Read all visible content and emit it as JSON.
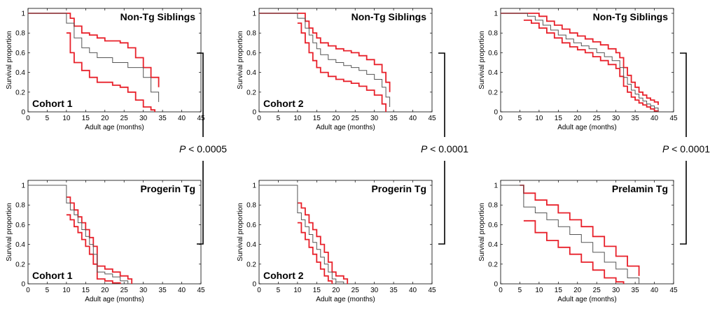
{
  "chart_data": [
    {
      "type": "line",
      "title": "Non-Tg Siblings",
      "annotation": "Cohort 1",
      "xlabel": "Adult age (months)",
      "ylabel": "Survival proportion",
      "xlim": [
        0,
        45
      ],
      "ylim": [
        0,
        1.05
      ],
      "xticks": [
        0,
        5,
        10,
        15,
        20,
        25,
        30,
        35,
        40,
        45
      ],
      "yticks": [
        0,
        0.2,
        0.4,
        0.6,
        0.8,
        1
      ],
      "series": [
        {
          "role": "estimate",
          "color": "#555555",
          "x": [
            0,
            10,
            12,
            14,
            16,
            18,
            20,
            22,
            24,
            26,
            28,
            30,
            32,
            34
          ],
          "y": [
            1,
            0.9,
            0.75,
            0.65,
            0.6,
            0.55,
            0.55,
            0.5,
            0.5,
            0.45,
            0.45,
            0.35,
            0.2,
            0.1
          ]
        },
        {
          "role": "upper-ci",
          "color": "#e8202a",
          "x": [
            0,
            10,
            11,
            12,
            14,
            16,
            18,
            20,
            22,
            24,
            26,
            28,
            30,
            32,
            34
          ],
          "y": [
            1,
            1,
            0.95,
            0.87,
            0.8,
            0.78,
            0.75,
            0.72,
            0.72,
            0.7,
            0.65,
            0.55,
            0.45,
            0.35,
            0.25
          ]
        },
        {
          "role": "lower-ci",
          "color": "#e8202a",
          "x": [
            10,
            11,
            12,
            14,
            16,
            18,
            20,
            22,
            24,
            26,
            28,
            30,
            32,
            33
          ],
          "y": [
            0.8,
            0.6,
            0.5,
            0.42,
            0.35,
            0.3,
            0.3,
            0.27,
            0.25,
            0.2,
            0.12,
            0.05,
            0.02,
            0
          ]
        }
      ]
    },
    {
      "type": "line",
      "title": "Progerin Tg",
      "annotation": "Cohort 1",
      "xlabel": "Adult age (months)",
      "ylabel": "Survival proportion",
      "xlim": [
        0,
        45
      ],
      "ylim": [
        0,
        1.05
      ],
      "xticks": [
        0,
        5,
        10,
        15,
        20,
        25,
        30,
        35,
        40,
        45
      ],
      "yticks": [
        0,
        0.2,
        0.4,
        0.6,
        0.8,
        1
      ],
      "series": [
        {
          "role": "estimate",
          "color": "#555555",
          "x": [
            0,
            10,
            11,
            12,
            13,
            14,
            15,
            16,
            17,
            18,
            20,
            22,
            24,
            26
          ],
          "y": [
            1,
            0.82,
            0.75,
            0.7,
            0.62,
            0.55,
            0.48,
            0.4,
            0.3,
            0.12,
            0.1,
            0.07,
            0.03,
            0
          ]
        },
        {
          "role": "upper-ci",
          "color": "#e8202a",
          "x": [
            10,
            11,
            12,
            13,
            14,
            15,
            16,
            17,
            18,
            20,
            22,
            24,
            26,
            27
          ],
          "y": [
            0.88,
            0.82,
            0.75,
            0.68,
            0.62,
            0.55,
            0.47,
            0.38,
            0.18,
            0.15,
            0.12,
            0.08,
            0.05,
            0
          ]
        },
        {
          "role": "lower-ci",
          "color": "#e8202a",
          "x": [
            10,
            11,
            12,
            13,
            14,
            15,
            16,
            17,
            18,
            20,
            22,
            24
          ],
          "y": [
            0.7,
            0.65,
            0.58,
            0.52,
            0.45,
            0.38,
            0.3,
            0.2,
            0.05,
            0.03,
            0.01,
            0
          ]
        }
      ]
    },
    {
      "type": "line",
      "title": "Non-Tg Siblings",
      "annotation": "Cohort 2",
      "xlabel": "Adult age (months)",
      "ylabel": "Survival proportion",
      "xlim": [
        0,
        45
      ],
      "ylim": [
        0,
        1.05
      ],
      "xticks": [
        0,
        5,
        10,
        15,
        20,
        25,
        30,
        35,
        40,
        45
      ],
      "yticks": [
        0,
        0.2,
        0.4,
        0.6,
        0.8,
        1
      ],
      "series": [
        {
          "role": "estimate",
          "color": "#555555",
          "x": [
            0,
            10,
            12,
            13,
            14,
            15,
            16,
            18,
            20,
            22,
            24,
            26,
            28,
            30,
            32,
            33,
            34
          ],
          "y": [
            1,
            0.95,
            0.85,
            0.78,
            0.7,
            0.64,
            0.58,
            0.53,
            0.5,
            0.47,
            0.45,
            0.42,
            0.38,
            0.33,
            0.25,
            0.15,
            0.05
          ]
        },
        {
          "role": "upper-ci",
          "color": "#e8202a",
          "x": [
            0,
            11,
            12,
            13,
            14,
            15,
            16,
            18,
            20,
            22,
            24,
            26,
            28,
            30,
            32,
            33,
            34
          ],
          "y": [
            1,
            1,
            0.92,
            0.85,
            0.8,
            0.75,
            0.7,
            0.67,
            0.64,
            0.62,
            0.6,
            0.57,
            0.53,
            0.48,
            0.4,
            0.3,
            0.2
          ]
        },
        {
          "role": "lower-ci",
          "color": "#e8202a",
          "x": [
            10,
            11,
            12,
            13,
            14,
            15,
            16,
            18,
            20,
            22,
            24,
            26,
            28,
            30,
            32,
            33
          ],
          "y": [
            0.9,
            0.8,
            0.7,
            0.6,
            0.52,
            0.45,
            0.4,
            0.36,
            0.33,
            0.31,
            0.29,
            0.26,
            0.22,
            0.17,
            0.08,
            0
          ]
        }
      ]
    },
    {
      "type": "line",
      "title": "Progerin Tg",
      "annotation": "Cohort 2",
      "xlabel": "Adult age (months)",
      "ylabel": "Survival proportion",
      "xlim": [
        0,
        45
      ],
      "ylim": [
        0,
        1.05
      ],
      "xticks": [
        0,
        5,
        10,
        15,
        20,
        25,
        30,
        35,
        40,
        45
      ],
      "yticks": [
        0,
        0.2,
        0.4,
        0.6,
        0.8,
        1
      ],
      "series": [
        {
          "role": "estimate",
          "color": "#555555",
          "x": [
            0,
            10,
            11,
            12,
            13,
            14,
            15,
            16,
            17,
            18,
            19,
            20,
            22
          ],
          "y": [
            1,
            0.72,
            0.65,
            0.58,
            0.5,
            0.42,
            0.35,
            0.27,
            0.2,
            0.12,
            0.05,
            0.02,
            0
          ]
        },
        {
          "role": "upper-ci",
          "color": "#e8202a",
          "x": [
            10,
            11,
            12,
            13,
            14,
            15,
            16,
            17,
            18,
            19,
            20,
            22,
            23
          ],
          "y": [
            0.82,
            0.77,
            0.7,
            0.62,
            0.55,
            0.48,
            0.4,
            0.32,
            0.22,
            0.12,
            0.08,
            0.05,
            0
          ]
        },
        {
          "role": "lower-ci",
          "color": "#e8202a",
          "x": [
            10,
            11,
            12,
            13,
            14,
            15,
            16,
            17,
            18,
            19
          ],
          "y": [
            0.62,
            0.52,
            0.45,
            0.37,
            0.3,
            0.22,
            0.15,
            0.08,
            0.03,
            0
          ]
        }
      ]
    },
    {
      "type": "line",
      "title": "Non-Tg Siblings",
      "xlabel": "Adult age (months)",
      "ylabel": "Survival proportion",
      "xlim": [
        0,
        45
      ],
      "ylim": [
        0,
        1.05
      ],
      "xticks": [
        0,
        5,
        10,
        15,
        20,
        25,
        30,
        35,
        40,
        45
      ],
      "yticks": [
        0,
        0.2,
        0.4,
        0.6,
        0.8,
        1
      ],
      "series": [
        {
          "role": "estimate",
          "color": "#555555",
          "x": [
            0,
            7,
            9,
            11,
            13,
            15,
            17,
            19,
            21,
            23,
            25,
            27,
            29,
            31,
            32,
            33,
            34,
            35,
            36,
            37,
            38,
            39,
            40,
            41
          ],
          "y": [
            1,
            0.97,
            0.93,
            0.88,
            0.83,
            0.78,
            0.74,
            0.7,
            0.67,
            0.64,
            0.6,
            0.56,
            0.52,
            0.45,
            0.35,
            0.28,
            0.22,
            0.18,
            0.14,
            0.11,
            0.08,
            0.06,
            0.04,
            0
          ]
        },
        {
          "role": "upper-ci",
          "color": "#e8202a",
          "x": [
            0,
            8,
            10,
            12,
            14,
            16,
            18,
            20,
            22,
            24,
            26,
            28,
            30,
            31,
            32,
            33,
            34,
            35,
            36,
            37,
            38,
            39,
            40,
            41
          ],
          "y": [
            1,
            1,
            0.97,
            0.92,
            0.88,
            0.84,
            0.8,
            0.77,
            0.74,
            0.71,
            0.68,
            0.64,
            0.6,
            0.55,
            0.45,
            0.37,
            0.3,
            0.25,
            0.2,
            0.17,
            0.14,
            0.12,
            0.1,
            0.07
          ]
        },
        {
          "role": "lower-ci",
          "color": "#e8202a",
          "x": [
            6,
            8,
            10,
            12,
            14,
            16,
            18,
            20,
            22,
            24,
            26,
            28,
            30,
            31,
            32,
            33,
            34,
            35,
            36,
            37,
            38,
            39,
            40,
            41
          ],
          "y": [
            0.93,
            0.9,
            0.85,
            0.8,
            0.75,
            0.7,
            0.66,
            0.63,
            0.6,
            0.56,
            0.52,
            0.48,
            0.44,
            0.36,
            0.26,
            0.2,
            0.15,
            0.12,
            0.09,
            0.07,
            0.05,
            0.03,
            0.01,
            0
          ]
        }
      ]
    },
    {
      "type": "line",
      "title": "Prelamin Tg",
      "xlabel": "Adult age (months)",
      "ylabel": "Survival proportion",
      "xlim": [
        0,
        45
      ],
      "ylim": [
        0,
        1.05
      ],
      "xticks": [
        0,
        5,
        10,
        15,
        20,
        25,
        30,
        35,
        40,
        45
      ],
      "yticks": [
        0,
        0.2,
        0.4,
        0.6,
        0.8,
        1
      ],
      "series": [
        {
          "role": "estimate",
          "color": "#555555",
          "x": [
            0,
            6,
            9,
            12,
            15,
            18,
            21,
            24,
            27,
            30,
            33,
            36
          ],
          "y": [
            1,
            0.78,
            0.72,
            0.65,
            0.58,
            0.5,
            0.42,
            0.32,
            0.22,
            0.15,
            0.06,
            0
          ]
        },
        {
          "role": "upper-ci",
          "color": "#e8202a",
          "x": [
            5,
            6,
            9,
            12,
            15,
            18,
            21,
            24,
            27,
            30,
            33,
            36
          ],
          "y": [
            1,
            0.92,
            0.85,
            0.8,
            0.72,
            0.65,
            0.58,
            0.48,
            0.38,
            0.28,
            0.18,
            0.08
          ]
        },
        {
          "role": "lower-ci",
          "color": "#e8202a",
          "x": [
            6,
            9,
            12,
            15,
            18,
            21,
            24,
            27,
            30,
            32
          ],
          "y": [
            0.64,
            0.52,
            0.44,
            0.37,
            0.3,
            0.22,
            0.14,
            0.06,
            0.02,
            0
          ]
        }
      ]
    }
  ],
  "comparisons": [
    {
      "label": "P < 0.0005"
    },
    {
      "label": "P < 0.0001"
    },
    {
      "label": "P < 0.0001"
    }
  ]
}
